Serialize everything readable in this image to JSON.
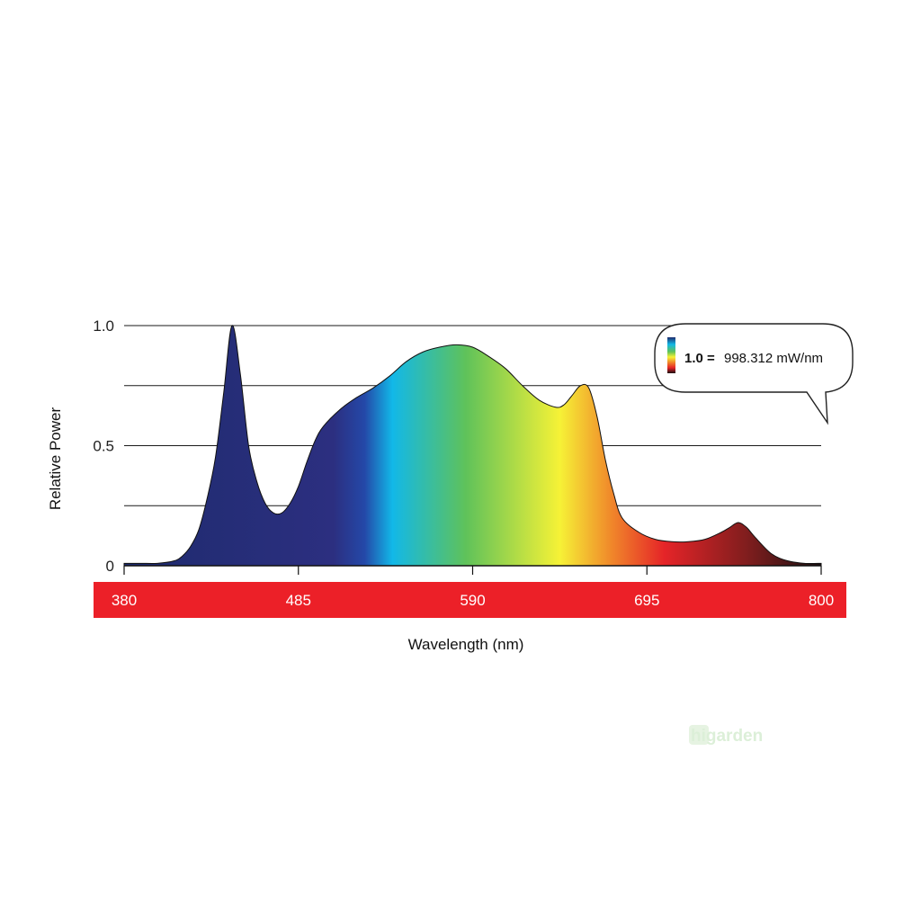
{
  "chart_data": {
    "type": "area",
    "title": "",
    "xlabel": "Wavelength (nm)",
    "ylabel": "Relative Power",
    "xlim": [
      380,
      800
    ],
    "ylim": [
      0,
      1.0
    ],
    "grid": true,
    "x_ticks": [
      380,
      485,
      590,
      695,
      800
    ],
    "x_tick_labels": [
      "380",
      "485",
      "590",
      "695",
      "800"
    ],
    "y_ticks": [
      0,
      0.5,
      1.0
    ],
    "y_tick_labels": [
      "0",
      "0.5",
      "1.0"
    ],
    "gridline_values": [
      0.25,
      0.5,
      0.75,
      1.0
    ],
    "x": [
      380,
      390,
      400,
      410,
      415,
      420,
      425,
      430,
      435,
      440,
      445,
      450,
      455,
      460,
      465,
      470,
      475,
      480,
      485,
      490,
      495,
      500,
      510,
      520,
      530,
      540,
      550,
      560,
      570,
      580,
      590,
      600,
      610,
      620,
      630,
      640,
      645,
      650,
      655,
      660,
      665,
      670,
      675,
      680,
      690,
      700,
      710,
      720,
      730,
      740,
      745,
      750,
      755,
      760,
      770,
      780,
      790,
      800
    ],
    "y": [
      0.01,
      0.01,
      0.01,
      0.02,
      0.04,
      0.08,
      0.15,
      0.28,
      0.45,
      0.72,
      1.0,
      0.8,
      0.5,
      0.35,
      0.26,
      0.22,
      0.22,
      0.26,
      0.33,
      0.43,
      0.52,
      0.58,
      0.65,
      0.7,
      0.74,
      0.79,
      0.85,
      0.89,
      0.91,
      0.92,
      0.91,
      0.87,
      0.82,
      0.75,
      0.69,
      0.66,
      0.67,
      0.71,
      0.75,
      0.74,
      0.62,
      0.44,
      0.3,
      0.2,
      0.14,
      0.11,
      0.1,
      0.1,
      0.11,
      0.14,
      0.16,
      0.18,
      0.16,
      0.12,
      0.05,
      0.02,
      0.01,
      0.01
    ],
    "callout": {
      "bold_label": "1.0 =",
      "value_text": "998.312 mW/nm"
    },
    "spectrum_colors": {
      "deep_blue": "#1e2b6e",
      "royal_blue": "#2c2f80",
      "cyan": "#12b8e8",
      "green": "#5fc25a",
      "yellow": "#f6f236",
      "orange": "#f0862a",
      "red": "#e52428",
      "dark_red": "#7a1d1d",
      "near_black": "#1b1012"
    },
    "band_color": "#ec2028"
  },
  "watermark": {
    "logo_text": "higarden"
  }
}
